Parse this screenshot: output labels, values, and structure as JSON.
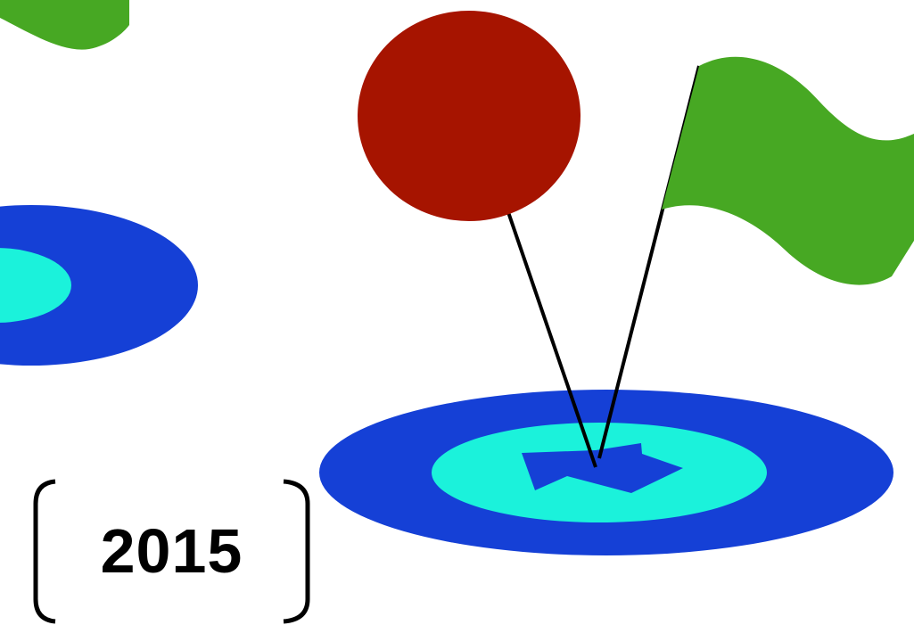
{
  "year_label": "2015",
  "colors": {
    "balloon": "#A61400",
    "flag": "#47A823",
    "target_outer": "#1540D6",
    "target_inner": "#1BF2DB",
    "stick": "#000000",
    "bracket": "#000000"
  },
  "icons": {
    "balloon": "balloon-icon",
    "flag": "flag-icon",
    "target_main": "target-icon",
    "target_left": "target-icon",
    "flag_partial": "flag-icon",
    "arrow": "arrow-icon"
  }
}
